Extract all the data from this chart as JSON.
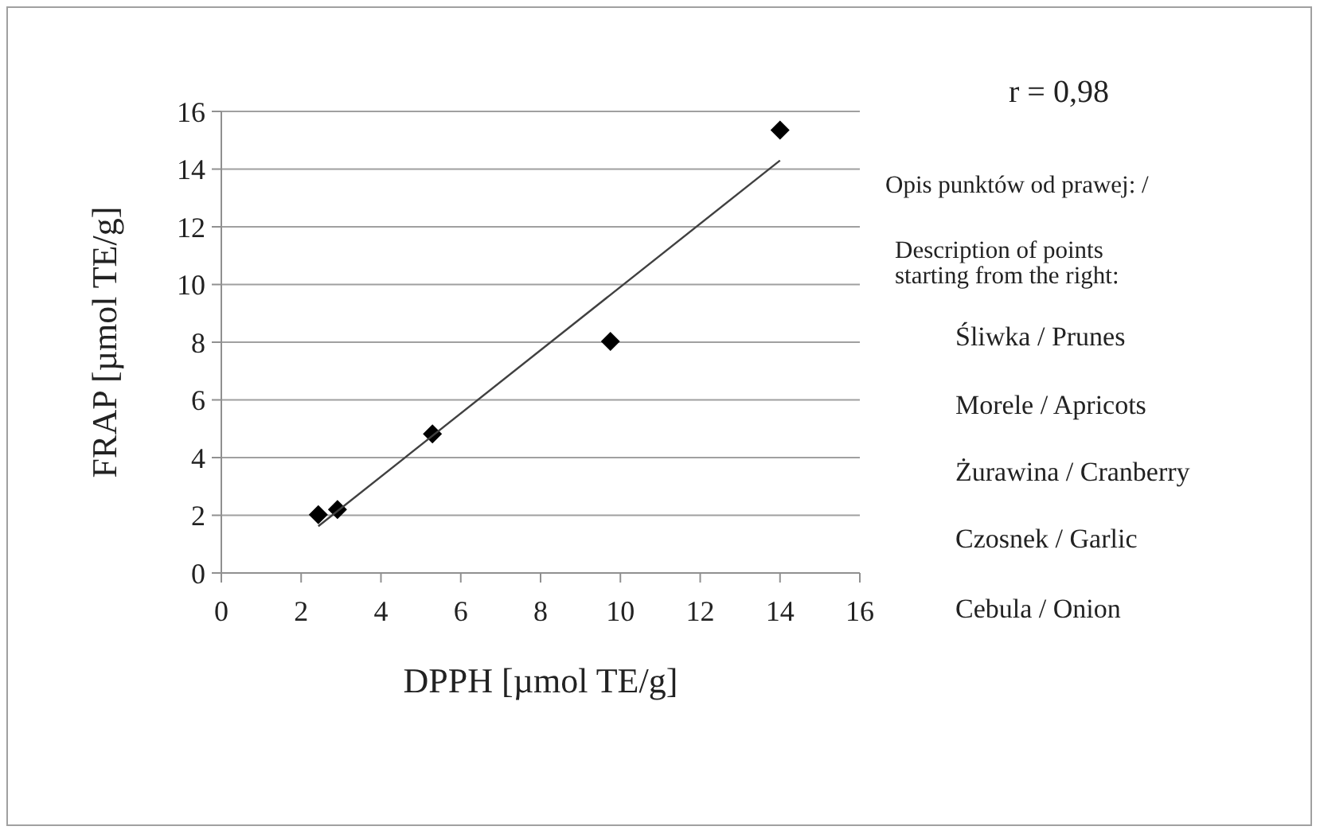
{
  "chart_data": {
    "type": "scatter",
    "xlabel": "DPPH [µmol TE/g]",
    "ylabel": "FRAP [µmol TE/g]",
    "xlim": [
      0,
      16
    ],
    "xticks": [
      0,
      2,
      4,
      6,
      8,
      10,
      12,
      14,
      16
    ],
    "ylim": [
      0,
      16
    ],
    "yticks": [
      0,
      2,
      4,
      6,
      8,
      10,
      12,
      14,
      16
    ],
    "grid": "y",
    "series": [
      {
        "color": "#000000",
        "marker": "diamond",
        "x": [
          2.43,
          2.91,
          5.29,
          9.75,
          14.0
        ],
        "values": [
          2.02,
          2.2,
          4.82,
          8.03,
          15.35
        ]
      },
      {
        "type": "line",
        "color": "#404040",
        "marker": "none",
        "line_style": "solid",
        "x": [
          2.43,
          14.0
        ],
        "values": [
          1.62,
          14.3
        ]
      }
    ],
    "annotations": [
      "r = 0,98",
      "Opis punktów od prawej: /",
      "Description of points",
      "starting from the right:",
      "Śliwka / Prunes",
      "Morele / Apricots",
      "Żurawina / Cranberry",
      "Czosnek / Garlic",
      "Cebula / Onion"
    ]
  }
}
